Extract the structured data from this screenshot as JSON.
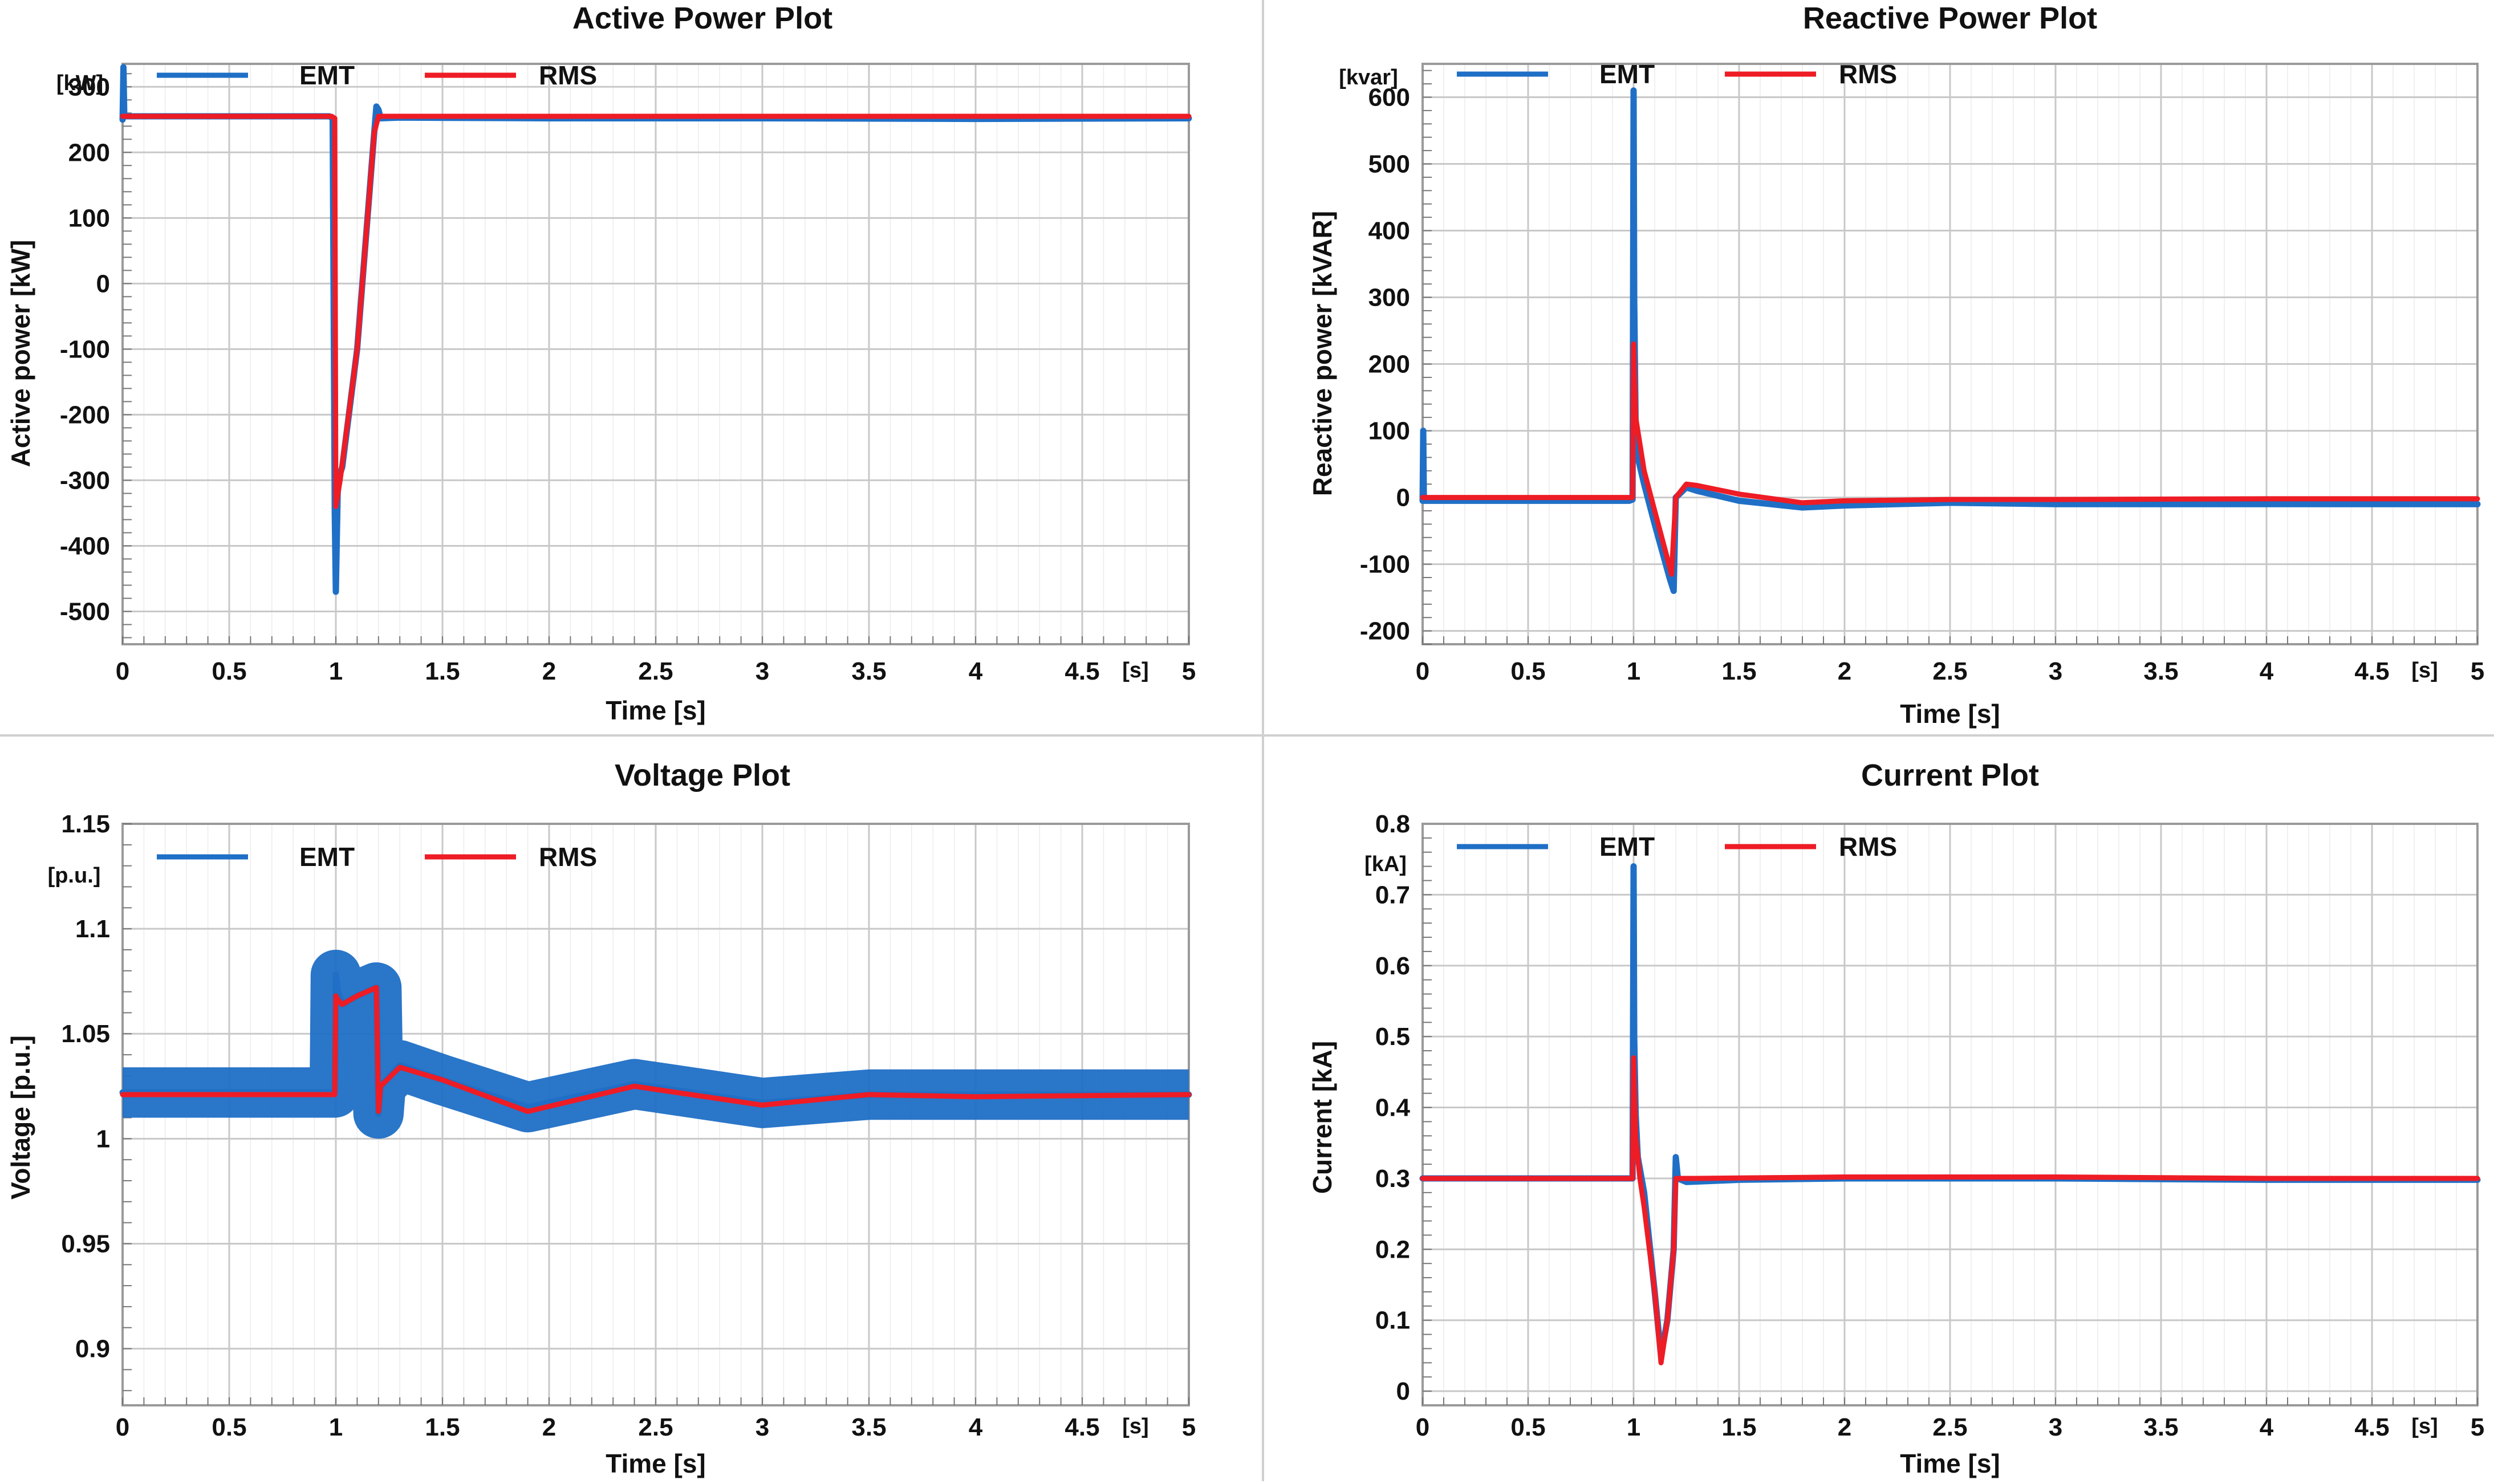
{
  "colors": {
    "emt": "#1f6fc6",
    "rms": "#ee1c25",
    "grid": "#c8c8c8",
    "minor_grid": "#ececec",
    "frame": "#9a9a9a",
    "divider": "#d0d0d0"
  },
  "legend": {
    "emt": "EMT",
    "rms": "RMS"
  },
  "chart_data": [
    {
      "id": "active",
      "type": "line",
      "title": "Active Power Plot",
      "xlabel": "Time [s]",
      "ylabel": "Active power [kW]",
      "y_unit_label": "[kW]",
      "x_unit_label": "[s]",
      "xlim": [
        0,
        5
      ],
      "ylim": [
        -550,
        335
      ],
      "xticks": [
        0,
        0.5,
        1,
        1.5,
        2,
        2.5,
        3,
        3.5,
        4,
        4.5,
        5
      ],
      "xtick_labels": [
        "0",
        "0.5",
        "1",
        "1.5",
        "2",
        "2.5",
        "3",
        "3.5",
        "4",
        "4.5",
        "5"
      ],
      "yticks": [
        300,
        200,
        100,
        0,
        -100,
        -200,
        -300,
        -400,
        -500
      ],
      "ytick_labels": [
        "300",
        "200",
        "100",
        "0",
        "-100",
        "-200",
        "-300",
        "-400",
        "-500"
      ],
      "grid": true,
      "legend_position": "top-left",
      "series": [
        {
          "name": "EMT",
          "band": 0,
          "x": [
            0,
            0.004,
            0.008,
            0.97,
            0.985,
            0.995,
            1.0,
            1.005,
            1.01,
            1.03,
            1.1,
            1.18,
            1.19,
            1.2,
            1.21,
            1.3,
            2,
            3,
            4,
            5
          ],
          "y": [
            250,
            330,
            255,
            255,
            252,
            -350,
            -470,
            -380,
            -300,
            -280,
            -100,
            230,
            270,
            265,
            252,
            253,
            252,
            252,
            251,
            252
          ]
        },
        {
          "name": "RMS",
          "band": 0,
          "x": [
            0,
            0.98,
            0.995,
            1.0,
            1.02,
            1.1,
            1.18,
            1.2,
            1.3,
            2,
            3,
            4,
            5
          ],
          "y": [
            255,
            255,
            252,
            -340,
            -300,
            -100,
            230,
            255,
            255,
            255,
            255,
            255,
            255
          ]
        }
      ]
    },
    {
      "id": "reactive",
      "type": "line",
      "title": "Reactive Power Plot",
      "xlabel": "Time [s]",
      "ylabel": "Reactive power [kVAR]",
      "y_unit_label": "[kvar]",
      "x_unit_label": "[s]",
      "xlim": [
        0,
        5
      ],
      "ylim": [
        -220,
        650
      ],
      "xticks": [
        0,
        0.5,
        1,
        1.5,
        2,
        2.5,
        3,
        3.5,
        4,
        4.5,
        5
      ],
      "xtick_labels": [
        "0",
        "0.5",
        "1",
        "1.5",
        "2",
        "2.5",
        "3",
        "3.5",
        "4",
        "4.5",
        "5"
      ],
      "yticks": [
        600,
        500,
        400,
        300,
        200,
        100,
        0,
        -100,
        -200
      ],
      "ytick_labels": [
        "600",
        "500",
        "400",
        "300",
        "200",
        "100",
        "0",
        "-100",
        "-200"
      ],
      "grid": true,
      "legend_position": "top-left",
      "series": [
        {
          "name": "EMT",
          "band": 0,
          "x": [
            0,
            0.003,
            0.006,
            0.98,
            0.995,
            1.0,
            1.003,
            1.01,
            1.02,
            1.05,
            1.1,
            1.17,
            1.19,
            1.2,
            1.25,
            1.3,
            1.5,
            1.8,
            2.0,
            2.5,
            3,
            4,
            5
          ],
          "y": [
            -5,
            100,
            -5,
            -5,
            -3,
            610,
            300,
            100,
            60,
            20,
            -40,
            -120,
            -140,
            0,
            15,
            10,
            -5,
            -15,
            -12,
            -8,
            -10,
            -10,
            -10
          ]
        },
        {
          "name": "RMS",
          "band": 0,
          "x": [
            0,
            0.98,
            0.995,
            1.0,
            1.01,
            1.05,
            1.1,
            1.18,
            1.2,
            1.25,
            1.3,
            1.5,
            1.8,
            2.0,
            2.5,
            3,
            4,
            5
          ],
          "y": [
            0,
            0,
            0,
            230,
            120,
            40,
            -20,
            -115,
            0,
            20,
            18,
            5,
            -8,
            -5,
            -3,
            -3,
            -2,
            -2
          ]
        }
      ]
    },
    {
      "id": "voltage",
      "type": "line",
      "title": "Voltage Plot",
      "xlabel": "Time [s]",
      "ylabel": "Voltage [p.u.]",
      "y_unit_label": "[p.u.]",
      "x_unit_label": "[s]",
      "xlim": [
        0,
        5
      ],
      "ylim": [
        0.873,
        1.15
      ],
      "xticks": [
        0,
        0.5,
        1,
        1.5,
        2,
        2.5,
        3,
        3.5,
        4,
        4.5,
        5
      ],
      "xtick_labels": [
        "0",
        "0.5",
        "1",
        "1.5",
        "2",
        "2.5",
        "3",
        "3.5",
        "4",
        "4.5",
        "5"
      ],
      "yticks": [
        1.15,
        1.1,
        1.05,
        1,
        0.95,
        0.9
      ],
      "ytick_labels": [
        "1.15",
        "1.1",
        "1.05",
        "1",
        "0.95",
        "0.9"
      ],
      "grid": true,
      "legend_position": "top-left",
      "series": [
        {
          "name": "EMT",
          "band": 0.012,
          "x": [
            0,
            0.97,
            0.995,
            1.0,
            1.01,
            1.03,
            1.1,
            1.19,
            1.2,
            1.21,
            1.3,
            1.5,
            1.9,
            2.4,
            3,
            3.5,
            4,
            5
          ],
          "y": [
            1.022,
            1.022,
            1.022,
            1.078,
            1.07,
            1.064,
            1.068,
            1.072,
            1.012,
            1.025,
            1.035,
            1.028,
            1.015,
            1.026,
            1.017,
            1.021,
            1.021,
            1.021
          ]
        },
        {
          "name": "RMS",
          "band": 0,
          "x": [
            0,
            0.98,
            0.995,
            1.0,
            1.01,
            1.03,
            1.1,
            1.19,
            1.2,
            1.21,
            1.3,
            1.5,
            1.9,
            2.4,
            3,
            3.5,
            4,
            5
          ],
          "y": [
            1.021,
            1.021,
            1.021,
            1.068,
            1.066,
            1.064,
            1.068,
            1.072,
            1.013,
            1.025,
            1.034,
            1.028,
            1.013,
            1.025,
            1.016,
            1.021,
            1.02,
            1.021
          ]
        }
      ]
    },
    {
      "id": "current",
      "type": "line",
      "title": "Current Plot",
      "xlabel": "Time [s]",
      "ylabel": "Current [kA]",
      "y_unit_label": "[kA]",
      "x_unit_label": "[s]",
      "xlim": [
        0,
        5
      ],
      "ylim": [
        -0.02,
        0.8
      ],
      "xticks": [
        0,
        0.5,
        1,
        1.5,
        2,
        2.5,
        3,
        3.5,
        4,
        4.5,
        5
      ],
      "xtick_labels": [
        "0",
        "0.5",
        "1",
        "1.5",
        "2",
        "2.5",
        "3",
        "3.5",
        "4",
        "4.5",
        "5"
      ],
      "yticks": [
        0.8,
        0.7,
        0.6,
        0.5,
        0.4,
        0.3,
        0.2,
        0.1,
        0
      ],
      "ytick_labels": [
        "0.8",
        "0.7",
        "0.6",
        "0.5",
        "0.4",
        "0.3",
        "0.2",
        "0.1",
        "0"
      ],
      "grid": true,
      "legend_position": "top-left",
      "series": [
        {
          "name": "EMT",
          "band": 0,
          "x": [
            0,
            0.98,
            0.995,
            1.0,
            1.003,
            1.01,
            1.02,
            1.05,
            1.1,
            1.13,
            1.16,
            1.19,
            1.2,
            1.21,
            1.25,
            1.5,
            2,
            3,
            4,
            5
          ],
          "y": [
            0.3,
            0.3,
            0.3,
            0.74,
            0.5,
            0.39,
            0.33,
            0.28,
            0.14,
            0.05,
            0.1,
            0.2,
            0.33,
            0.3,
            0.295,
            0.298,
            0.3,
            0.3,
            0.298,
            0.298
          ]
        },
        {
          "name": "RMS",
          "band": 0,
          "x": [
            0,
            0.98,
            0.995,
            1.0,
            1.01,
            1.03,
            1.05,
            1.1,
            1.13,
            1.16,
            1.19,
            1.2,
            1.21,
            1.3,
            2,
            3,
            4,
            5
          ],
          "y": [
            0.3,
            0.3,
            0.3,
            0.47,
            0.36,
            0.3,
            0.26,
            0.14,
            0.04,
            0.1,
            0.2,
            0.3,
            0.3,
            0.3,
            0.302,
            0.302,
            0.3,
            0.3
          ]
        }
      ]
    }
  ]
}
